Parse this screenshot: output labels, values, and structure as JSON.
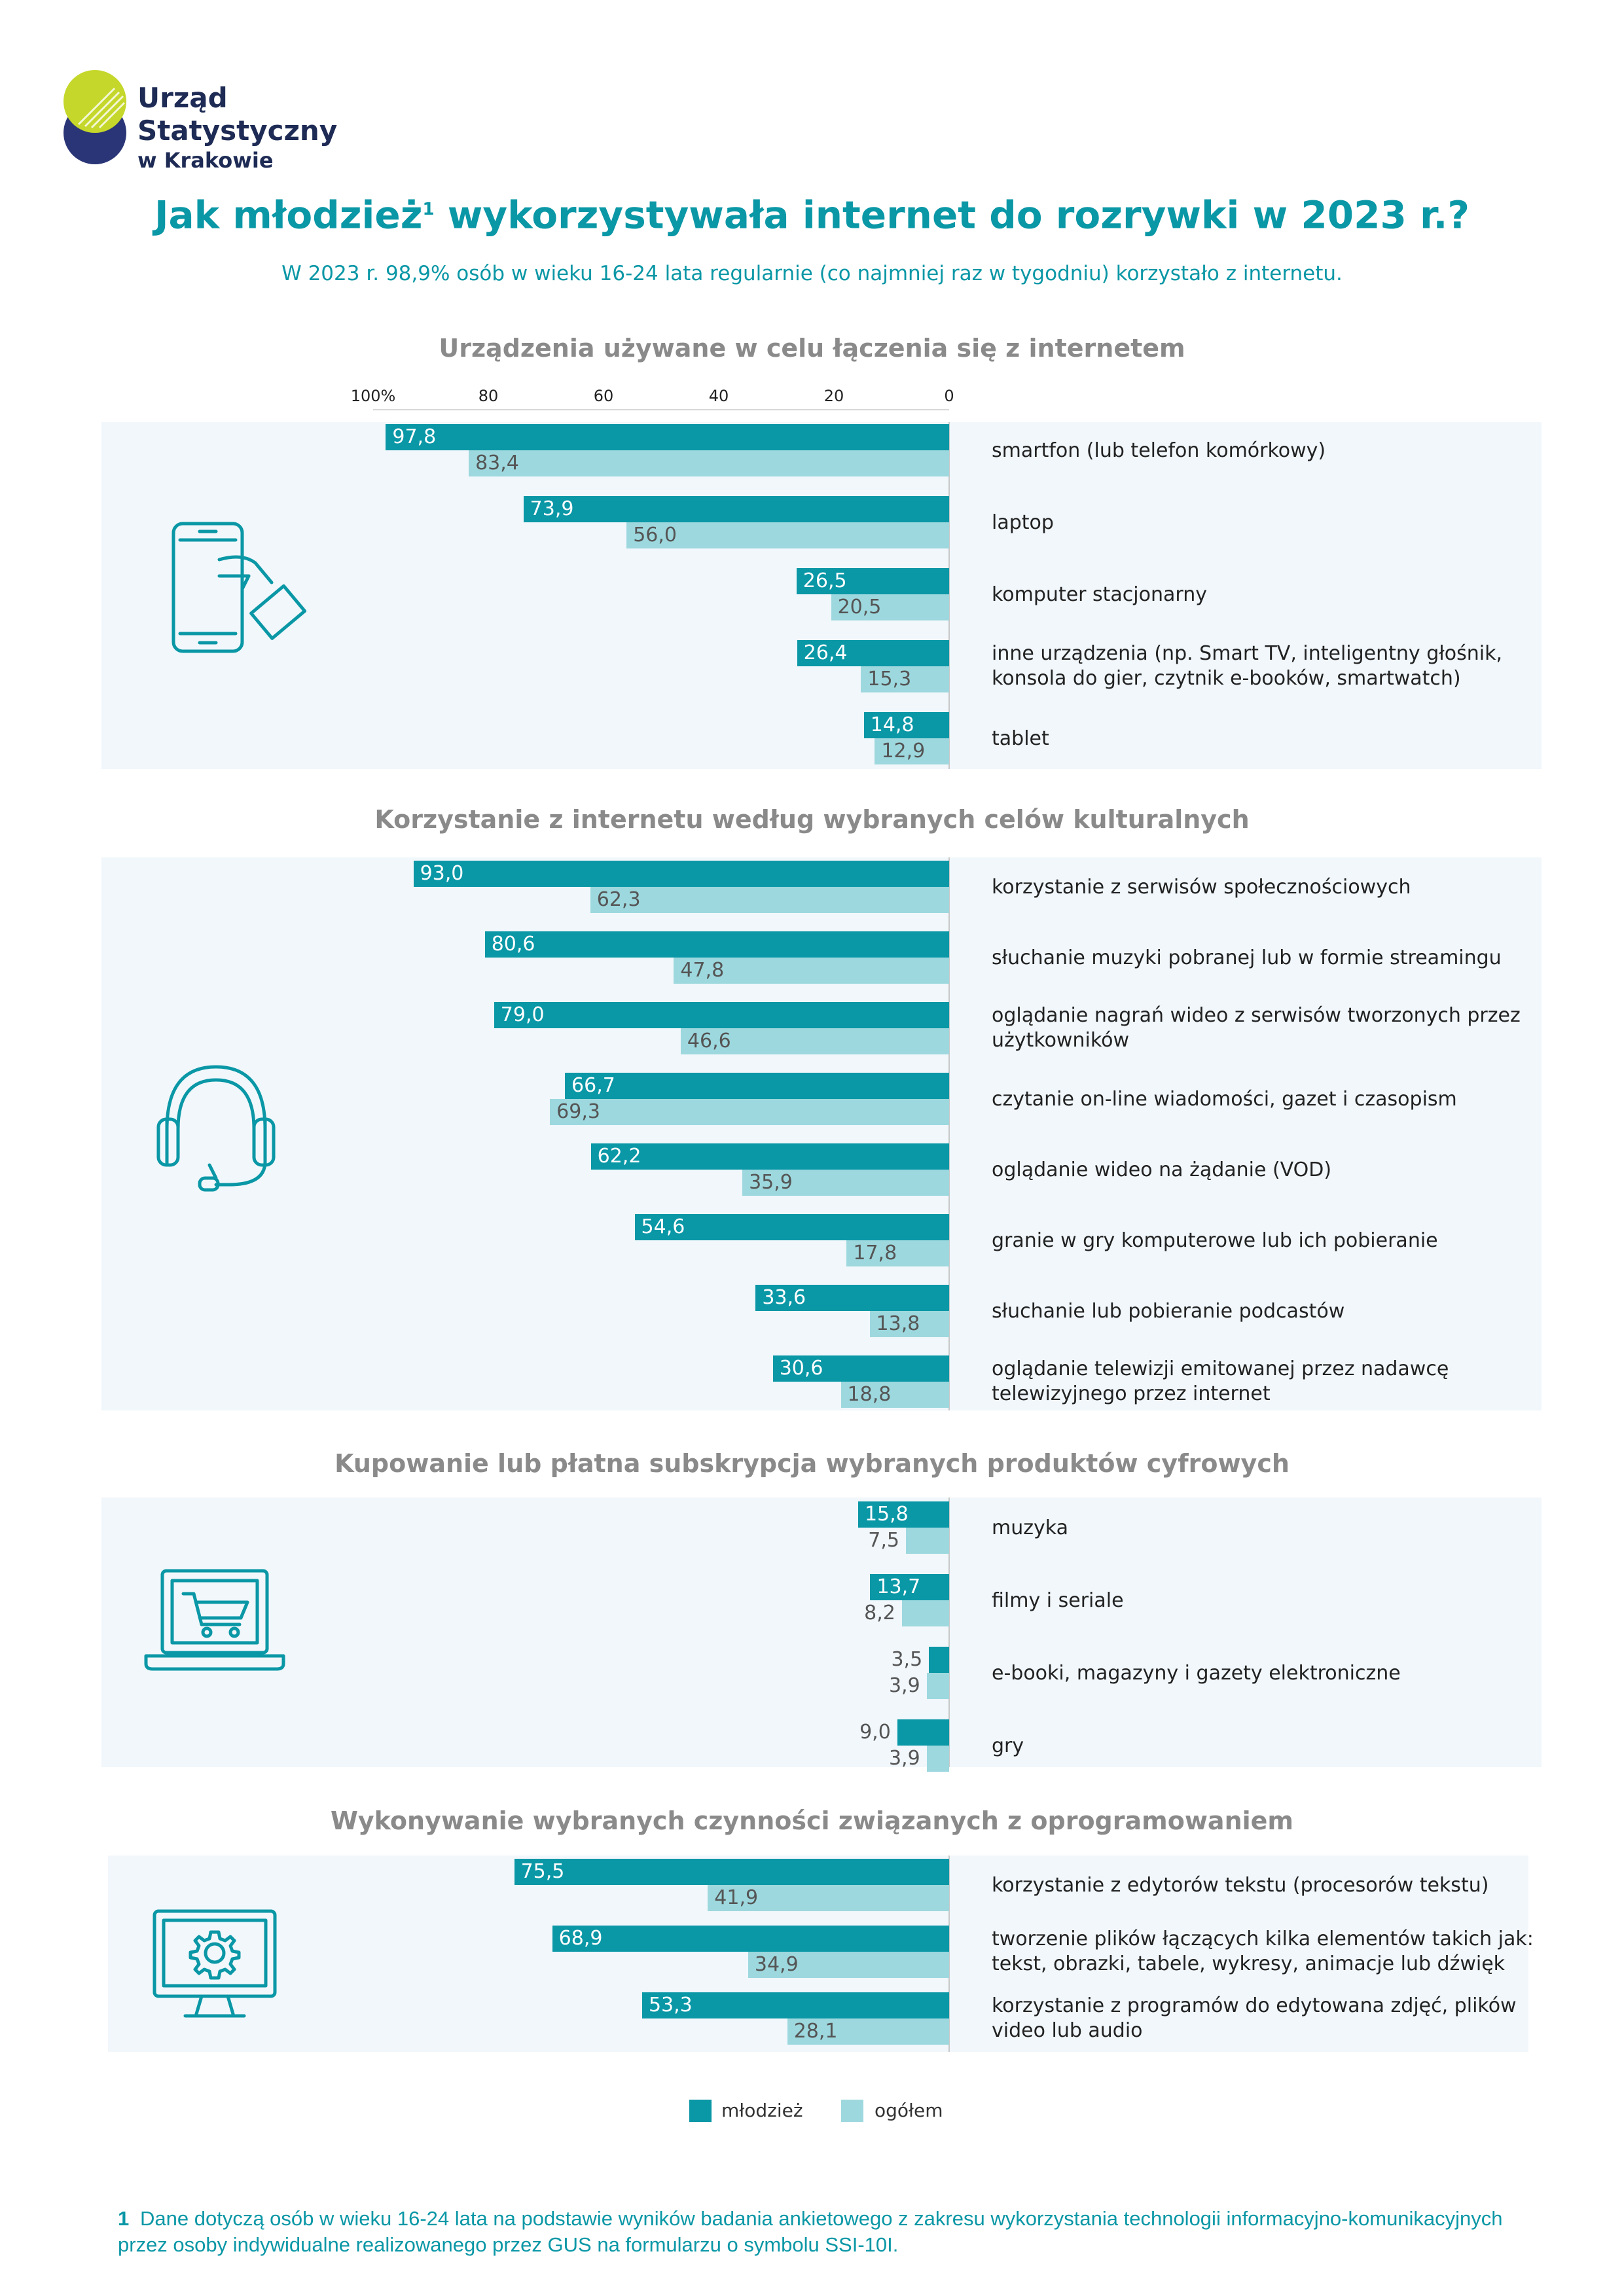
{
  "logo": {
    "line1": "Urząd Statystyczny",
    "line2": "w Krakowie"
  },
  "title": "Jak młodzież",
  "title_sup": "1",
  "title_rest": " wykorzystywała internet do rozrywki w 2023 r.?",
  "subtitle": "W 2023 r. 98,9% osób w wieku 16-24 lata regularnie (co najmniej raz w tygodniu) korzystało z internetu.",
  "axis_ticks": [
    "100%",
    "80",
    "60",
    "40",
    "20",
    "0"
  ],
  "colors": {
    "youth": "#0a97a6",
    "total": "#9dd8de",
    "panel": "#f1f7fb"
  },
  "legend": {
    "youth": "młodzież",
    "total": "ogółem"
  },
  "chart_data": [
    {
      "type": "bar",
      "title": "Urządzenia używane w celu łączenia się z internetem",
      "icon": "smartphone-hand-icon",
      "xlim": [
        0,
        100
      ],
      "categories": [
        "smartfon (lub telefon komórkowy)",
        "laptop",
        "komputer stacjonarny",
        "inne urządzenia (np. Smart TV, inteligentny głośnik, konsola do gier, czytnik e-booków, smartwatch)",
        "tablet"
      ],
      "series": [
        {
          "name": "młodzież",
          "values": [
            97.8,
            73.9,
            26.5,
            26.4,
            14.8
          ]
        },
        {
          "name": "ogółem",
          "values": [
            83.4,
            56.0,
            20.5,
            15.3,
            12.9
          ]
        }
      ]
    },
    {
      "type": "bar",
      "title": "Korzystanie z internetu według wybranych celów kulturalnych",
      "icon": "headphones-icon",
      "xlim": [
        0,
        100
      ],
      "categories": [
        "korzystanie z serwisów społecznościowych",
        "słuchanie muzyki pobranej lub w formie streamingu",
        "oglądanie nagrań wideo z serwisów tworzonych przez użytkowników",
        "czytanie on-line wiadomości, gazet i czasopism",
        "oglądanie wideo na żądanie (VOD)",
        "granie w gry komputerowe lub ich pobieranie",
        "słuchanie lub pobieranie podcastów",
        "oglądanie telewizji emitowanej przez nadawcę telewizyjnego przez internet"
      ],
      "series": [
        {
          "name": "młodzież",
          "values": [
            93.0,
            80.6,
            79.0,
            66.7,
            62.2,
            54.6,
            33.6,
            30.6
          ]
        },
        {
          "name": "ogółem",
          "values": [
            62.3,
            47.8,
            46.6,
            69.3,
            35.9,
            17.8,
            13.8,
            18.8
          ]
        }
      ]
    },
    {
      "type": "bar",
      "title": "Kupowanie lub płatna subskrypcja wybranych produktów cyfrowych",
      "icon": "laptop-cart-icon",
      "xlim": [
        0,
        100
      ],
      "categories": [
        "muzyka",
        "filmy i seriale",
        "e-booki, magazyny i gazety elektroniczne",
        "gry"
      ],
      "series": [
        {
          "name": "młodzież",
          "values": [
            15.8,
            13.7,
            3.5,
            9.0
          ]
        },
        {
          "name": "ogółem",
          "values": [
            7.5,
            8.2,
            3.9,
            3.9
          ]
        }
      ]
    },
    {
      "type": "bar",
      "title": "Wykonywanie wybranych czynności związanych z oprogramowaniem",
      "icon": "monitor-gear-icon",
      "xlim": [
        0,
        100
      ],
      "categories": [
        "korzystanie z edytorów tekstu (procesorów tekstu)",
        "tworzenie plików łączących kilka elementów takich jak: tekst, obrazki, tabele, wykresy, animacje lub dźwięk",
        "korzystanie z programów do edytowana zdjęć, plików video lub audio"
      ],
      "series": [
        {
          "name": "młodzież",
          "values": [
            75.5,
            68.9,
            53.3
          ]
        },
        {
          "name": "ogółem",
          "values": [
            41.9,
            34.9,
            28.1
          ]
        }
      ]
    }
  ],
  "footnote_num": "1",
  "footnote": "Dane dotyczą osób w wieku 16-24 lata na podstawie wyników badania ankietowego z zakresu wykorzystania technologii informacyjno-komunikacyjnych przez osoby indywidualne realizowanego przez GUS na formularzu o symbolu SSI-10I."
}
